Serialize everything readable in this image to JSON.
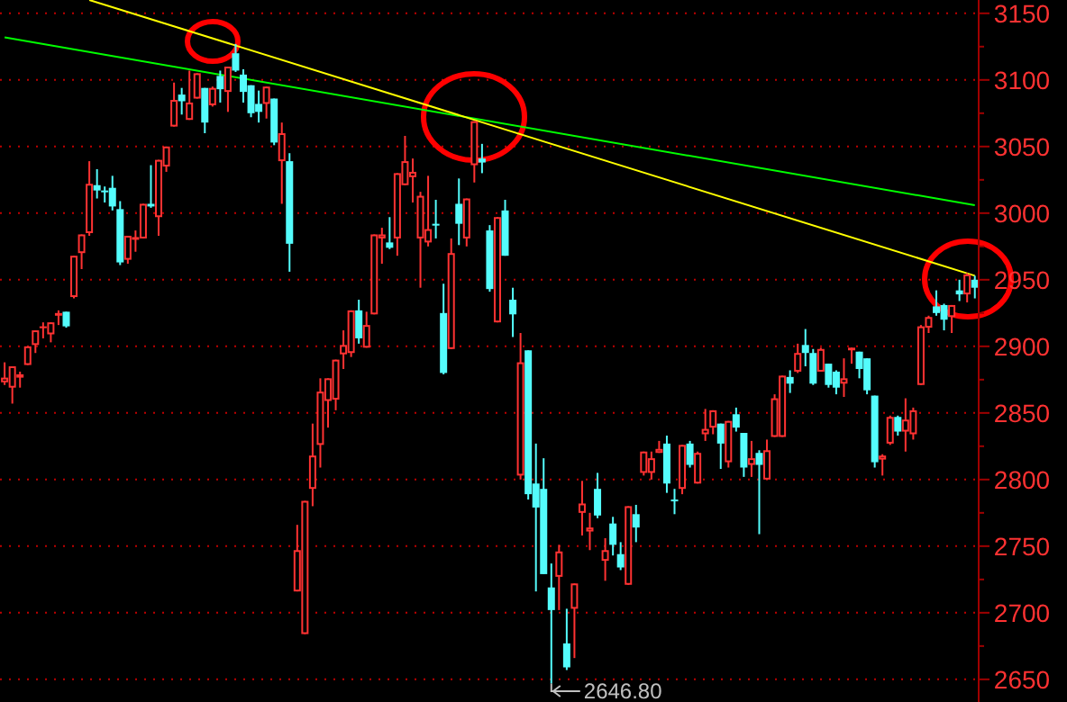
{
  "chart_data": {
    "type": "candlestick",
    "categories": [
      null,
      null,
      null,
      null,
      null,
      null,
      null,
      null,
      null,
      null,
      null,
      null,
      null,
      null,
      null,
      null,
      null,
      null,
      null,
      null,
      null,
      null,
      null,
      null,
      null,
      null,
      null,
      null,
      null,
      null,
      null,
      null,
      null,
      null,
      null,
      null,
      null,
      null,
      null,
      null,
      null,
      null,
      null,
      null,
      null,
      null,
      null,
      null,
      null,
      null,
      null,
      null,
      null,
      null,
      null,
      null,
      null,
      null,
      null,
      null,
      null,
      null,
      null,
      null,
      null,
      null,
      null,
      null,
      null,
      null,
      null,
      null,
      null,
      null,
      null,
      null,
      null,
      null,
      null,
      null,
      null,
      null,
      null,
      null,
      null,
      null,
      null,
      null,
      null,
      null,
      null,
      null,
      null,
      null,
      null,
      null,
      null,
      null,
      null,
      null,
      null,
      null,
      null,
      null,
      null,
      null,
      null,
      null,
      null,
      null,
      null,
      null,
      null,
      null,
      null,
      null,
      null,
      null,
      null,
      null,
      null,
      null,
      null,
      null,
      null,
      null,
      null
    ],
    "ylim": [
      2633,
      3160
    ],
    "yticks": [
      2650,
      {
        "value": 2675,
        "label": null
      },
      2700,
      {
        "value": 2725,
        "label": null
      },
      2750,
      {
        "value": 2775,
        "label": null
      },
      2800,
      {
        "value": 2825,
        "label": null
      },
      2850,
      {
        "value": 2875,
        "label": null
      },
      2900,
      {
        "value": 2925,
        "label": null
      },
      2950,
      {
        "value": 2975,
        "label": null
      },
      3000,
      {
        "value": 3025,
        "label": null
      },
      3050,
      {
        "value": 3075,
        "label": null
      },
      3100,
      {
        "value": 3125,
        "label": null
      },
      3150
    ],
    "grid": "y",
    "tick_labels": "y",
    "annotations": [
      "2646.80"
    ],
    "series": [
      {
        "colors": [
          "#ff3232",
          "#ff3232",
          "#ff3232",
          "#ff3232",
          "#ff3232",
          "#ff3232",
          "#ff3232",
          "#ff3232",
          "#54fcfc",
          "#ff3232",
          "#ff3232",
          "#ff3232",
          "#54fcfc",
          "#54fcfc",
          "#54fcfc",
          "#54fcfc",
          "#ff3232",
          "#ff3232",
          "#ff3232",
          "#54fcfc",
          "#ff3232",
          "#ff3232",
          "#ff3232",
          "#54fcfc",
          "#ff3232",
          "#ff3232",
          "#54fcfc",
          "#ff3232",
          "#54fcfc",
          "#ff3232",
          "#54fcfc",
          "#54fcfc",
          "#54fcfc",
          "#54fcfc",
          "#ff3232",
          "#54fcfc",
          "#ff3232",
          "#54fcfc",
          "#ff3232",
          "#ff3232",
          "#ff3232",
          "#ff3232",
          "#ff3232",
          "#ff3232",
          "#ff3232",
          "#ff3232",
          "#54fcfc",
          "#ff3232",
          "#ff3232",
          "#ff3232",
          "#54fcfc",
          "#ff3232",
          "#ff3232",
          "#ff3232",
          "#ff3232",
          "#ff3232",
          "#54fcfc",
          "#54fcfc",
          "#ff3232",
          "#54fcfc",
          "#ff3232",
          "#ff3232",
          "#54fcfc",
          "#54fcfc",
          "#ff3232",
          "#54fcfc",
          "#54fcfc",
          "#ff3232",
          "#54fcfc",
          "#54fcfc",
          "#54fcfc",
          "#54fcfc",
          "#ff3232",
          "#54fcfc",
          "#ff3232",
          "#ff3232",
          "#ff3232",
          "#54fcfc",
          "#ff3232",
          "#54fcfc",
          "#54fcfc",
          "#ff3232",
          "#54fcfc",
          "#ff3232",
          "#ff3232",
          "#ff3232",
          "#54fcfc",
          "#54fcfc",
          "#ff3232",
          "#54fcfc",
          "#ff3232",
          "#ff3232",
          "#ff3232",
          "#54fcfc",
          "#ff3232",
          "#54fcfc",
          "#54fcfc",
          "#ff3232",
          "#54fcfc",
          "#ff3232",
          "#ff3232",
          "#ff3232",
          "#54fcfc",
          "#ff3232",
          "#54fcfc",
          "#54fcfc",
          "#ff3232",
          "#54fcfc",
          "#54fcfc",
          "#ff3232",
          "#ff3232",
          "#54fcfc",
          "#54fcfc",
          "#54fcfc",
          "#ff3232",
          "#ff3232",
          "#54fcfc",
          "#ff3232",
          "#ff3232",
          "#ff3232",
          "#ff3232",
          "#54fcfc",
          "#54fcfc",
          "#ff3232",
          "#54fcfc",
          "#ff3232",
          "#54fcfc"
        ],
        "ohlc": [
          [
            2873,
            2888,
            2871,
            2876.5
          ],
          [
            2869,
            2885,
            2857,
            2885
          ],
          [
            2876.5,
            2881,
            2869,
            2879
          ],
          [
            2886,
            2900,
            2886,
            2900
          ],
          [
            2901,
            2912,
            2895,
            2912
          ],
          [
            2914,
            2918,
            2906,
            2915
          ],
          [
            2909,
            2918,
            2903,
            2918
          ],
          [
            2923,
            2927,
            2916,
            2925
          ],
          [
            2926,
            2926,
            2914,
            2915
          ],
          [
            2937,
            2968,
            2936,
            2968
          ],
          [
            2970,
            2984,
            2958,
            2984
          ],
          [
            2985,
            3039,
            2983,
            3022
          ],
          [
            3021,
            3033,
            3011,
            3017
          ],
          [
            3017,
            3020,
            3008,
            3016
          ],
          [
            3019,
            3028,
            3002,
            3005
          ],
          [
            3003,
            3009,
            2961,
            2963
          ],
          [
            2965,
            2983,
            2962,
            2983
          ],
          [
            2980,
            2987,
            2971,
            2982
          ],
          [
            2981,
            3007,
            2981,
            3007
          ],
          [
            3007,
            3036,
            3004,
            3005
          ],
          [
            2997,
            3040,
            2983,
            3040
          ],
          [
            3035,
            3050,
            3031,
            3050
          ],
          [
            3065,
            3098,
            3065,
            3085
          ],
          [
            3089,
            3094,
            3074,
            3084
          ],
          [
            3070,
            3107,
            3070,
            3083
          ],
          [
            3086,
            3105,
            3086,
            3105
          ],
          [
            3094,
            3094,
            3060,
            3068
          ],
          [
            3081,
            3095,
            3080,
            3094
          ],
          [
            3103,
            3107,
            3083,
            3093
          ],
          [
            3091,
            3110,
            3076,
            3110
          ],
          [
            3120,
            3127,
            3106,
            3107
          ],
          [
            3104,
            3108,
            3083,
            3091
          ],
          [
            3096,
            3096,
            3072,
            3075
          ],
          [
            3082,
            3092,
            3068,
            3076
          ],
          [
            3082,
            3095,
            3071,
            3095
          ],
          [
            3086,
            3086,
            3051,
            3053
          ],
          [
            3039,
            3068,
            3007,
            3060
          ],
          [
            3039,
            3045,
            2956,
            2977
          ],
          [
            2716,
            2766,
            2716,
            2747
          ],
          [
            2684,
            2784,
            2684,
            2784
          ],
          [
            2793,
            2842,
            2780,
            2818
          ],
          [
            2826,
            2876,
            2809,
            2866
          ],
          [
            2859,
            2876,
            2839,
            2876
          ],
          [
            2860,
            2890,
            2852,
            2890
          ],
          [
            2894,
            2912,
            2883,
            2901
          ],
          [
            2895,
            2927,
            2892,
            2927
          ],
          [
            2927,
            2935,
            2902,
            2906
          ],
          [
            2899,
            2926,
            2899,
            2916
          ],
          [
            2924,
            2984,
            2924,
            2984
          ],
          [
            2981,
            2989,
            2962,
            2984
          ],
          [
            2978,
            2997,
            2973,
            2974
          ],
          [
            2981,
            3030,
            2968,
            3030
          ],
          [
            3021,
            3058,
            3021,
            3039
          ],
          [
            3027,
            3041,
            3008,
            3031
          ],
          [
            2981,
            3016,
            2944,
            3013
          ],
          [
            2978,
            3028,
            2975,
            2988
          ],
          [
            2992,
            3010,
            2981,
            2991
          ],
          [
            2925,
            2947,
            2879,
            2880
          ],
          [
            2898,
            2981,
            2898,
            2970
          ],
          [
            3007,
            3026,
            2976,
            2992
          ],
          [
            2981,
            3011,
            2975,
            3011
          ],
          [
            3036,
            3069,
            3023,
            3069
          ],
          [
            3041,
            3052,
            3030,
            3038
          ],
          [
            2987,
            2991,
            2941,
            2943
          ],
          [
            2918,
            2997,
            2918,
            2997
          ],
          [
            3002,
            3010,
            2968,
            2968
          ],
          [
            2935,
            2944,
            2907,
            2924
          ],
          [
            2803,
            2910,
            2800,
            2888
          ],
          [
            2897,
            2897,
            2785,
            2789
          ],
          [
            2797,
            2827,
            2716,
            2779
          ],
          [
            2793,
            2816,
            2729,
            2729
          ],
          [
            2719,
            2737,
            2646.8,
            2702
          ],
          [
            2727,
            2751,
            2702,
            2746
          ],
          [
            2677,
            2703,
            2657,
            2659
          ],
          [
            2703,
            2722,
            2666,
            2722
          ],
          [
            2775,
            2799,
            2758,
            2782
          ],
          [
            2761,
            2775,
            2747,
            2764
          ],
          [
            2793,
            2805,
            2771,
            2773
          ],
          [
            2739,
            2756,
            2724,
            2747
          ],
          [
            2767,
            2772,
            2743,
            2751
          ],
          [
            2744,
            2753,
            2732,
            2734
          ],
          [
            2721,
            2780,
            2721,
            2780
          ],
          [
            2774,
            2781,
            2753,
            2764
          ],
          [
            2805,
            2821,
            2803,
            2821
          ],
          [
            2805,
            2821,
            2800,
            2816
          ],
          [
            2820,
            2829,
            2820,
            2823
          ],
          [
            2827,
            2833,
            2790,
            2797
          ],
          [
            2785,
            2793,
            2774,
            2784
          ],
          [
            2793,
            2826,
            2789,
            2826
          ],
          [
            2827,
            2829,
            2809,
            2811
          ],
          [
            2797,
            2821,
            2797,
            2820
          ],
          [
            2834,
            2853,
            2829,
            2838
          ],
          [
            2839,
            2852,
            2834,
            2852
          ],
          [
            2842,
            2842,
            2808,
            2827
          ],
          [
            2813,
            2844,
            2809,
            2844
          ],
          [
            2849,
            2854,
            2836,
            2839
          ],
          [
            2835,
            2835,
            2802,
            2809
          ],
          [
            2811,
            2829,
            2802,
            2816
          ],
          [
            2820,
            2822,
            2759,
            2811
          ],
          [
            2800,
            2830,
            2800,
            2822
          ],
          [
            2832,
            2864,
            2832,
            2861
          ],
          [
            2832,
            2878,
            2832,
            2878
          ],
          [
            2877,
            2882,
            2865,
            2872
          ],
          [
            2881,
            2902,
            2880,
            2895
          ],
          [
            2901,
            2913,
            2885,
            2895
          ],
          [
            2895,
            2898,
            2871,
            2872
          ],
          [
            2881,
            2899,
            2881,
            2898
          ],
          [
            2887,
            2887,
            2869,
            2871
          ],
          [
            2881,
            2882,
            2864,
            2869
          ],
          [
            2872,
            2891,
            2862,
            2876
          ],
          [
            2897,
            2899,
            2887,
            2899
          ],
          [
            2896,
            2896,
            2876,
            2883
          ],
          [
            2891,
            2891,
            2864,
            2867
          ],
          [
            2863,
            2863,
            2809,
            2813
          ],
          [
            2815,
            2819,
            2803,
            2818
          ],
          [
            2827,
            2848,
            2826,
            2847
          ],
          [
            2847,
            2848,
            2833,
            2836
          ],
          [
            2836,
            2861,
            2821,
            2845
          ],
          [
            2834,
            2854,
            2830,
            2852
          ],
          [
            2871,
            2916,
            2871,
            2915
          ],
          [
            2914,
            2923,
            2910,
            2922
          ],
          [
            2930,
            2942,
            2923,
            2925
          ],
          [
            2931,
            2932,
            2912,
            2920
          ],
          [
            2922,
            2931,
            2910,
            2931
          ],
          [
            2942,
            2950,
            2934,
            2939
          ],
          [
            2939,
            2955,
            2933,
            2954
          ],
          [
            2950,
            2953,
            2936,
            2944
          ]
        ]
      },
      {
        "type": "line",
        "values": [
          3132,
          null,
          null,
          null,
          null,
          null,
          null,
          null,
          null,
          null,
          null,
          null,
          null,
          null,
          null,
          null,
          null,
          null,
          null,
          null,
          null,
          null,
          null,
          null,
          null,
          null,
          null,
          null,
          null,
          null,
          null,
          null,
          null,
          null,
          null,
          null,
          null,
          null,
          null,
          null,
          null,
          null,
          null,
          null,
          null,
          null,
          null,
          null,
          null,
          null,
          null,
          null,
          null,
          null,
          null,
          null,
          null,
          null,
          null,
          null,
          null,
          null,
          null,
          null,
          null,
          null,
          null,
          null,
          null,
          null,
          null,
          null,
          null,
          null,
          null,
          null,
          null,
          null,
          null,
          null,
          null,
          null,
          null,
          null,
          null,
          null,
          null,
          null,
          null,
          null,
          null,
          null,
          null,
          null,
          null,
          null,
          null,
          null,
          null,
          null,
          null,
          null,
          null,
          null,
          null,
          null,
          null,
          null,
          null,
          null,
          null,
          null,
          null,
          null,
          null,
          null,
          null,
          null,
          null,
          null,
          null,
          null,
          null,
          null,
          null,
          null,
          3006
        ],
        "color": "#00ff00"
      },
      {
        "type": "line",
        "values": [
          null,
          null,
          null,
          null,
          null,
          null,
          null,
          null,
          null,
          null,
          null,
          3160,
          null,
          null,
          null,
          null,
          null,
          null,
          null,
          null,
          null,
          null,
          null,
          null,
          null,
          null,
          null,
          null,
          null,
          null,
          null,
          null,
          null,
          null,
          null,
          null,
          null,
          null,
          null,
          null,
          null,
          null,
          null,
          null,
          null,
          null,
          null,
          null,
          null,
          null,
          null,
          null,
          null,
          null,
          null,
          null,
          null,
          null,
          null,
          null,
          null,
          null,
          null,
          null,
          null,
          null,
          null,
          null,
          null,
          null,
          null,
          null,
          null,
          null,
          null,
          null,
          null,
          null,
          null,
          null,
          null,
          null,
          null,
          null,
          null,
          null,
          null,
          null,
          null,
          null,
          null,
          null,
          null,
          null,
          null,
          null,
          null,
          null,
          null,
          null,
          null,
          null,
          null,
          null,
          null,
          null,
          null,
          null,
          null,
          null,
          null,
          null,
          null,
          null,
          null,
          null,
          null,
          null,
          null,
          null,
          null,
          null,
          null,
          null,
          null,
          null,
          2953
        ],
        "color": "#ffff00"
      }
    ]
  }
}
